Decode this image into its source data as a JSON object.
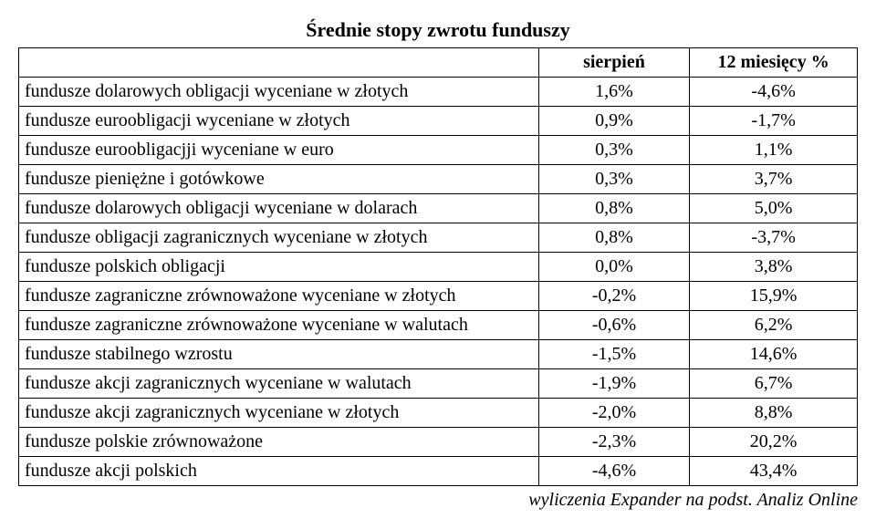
{
  "title": "Średnie stopy zwrotu funduszy",
  "columns": {
    "blank": "",
    "a": "sierpień",
    "b": "12 miesięcy %"
  },
  "rows": [
    {
      "label": "fundusze dolarowych obligacji wyceniane w złotych",
      "a": "1,6%",
      "b": "-4,6%"
    },
    {
      "label": "fundusze euroobligacji wyceniane w złotych",
      "a": "0,9%",
      "b": "-1,7%"
    },
    {
      "label": "fundusze euroobligacjji wyceniane w euro",
      "a": "0,3%",
      "b": "1,1%"
    },
    {
      "label": "fundusze pieniężne i gotówkowe",
      "a": "0,3%",
      "b": "3,7%"
    },
    {
      "label": "fundusze dolarowych obligacji wyceniane w dolarach",
      "a": "0,8%",
      "b": "5,0%"
    },
    {
      "label": "fundusze obligacji zagranicznych wyceniane w złotych",
      "a": "0,8%",
      "b": "-3,7%"
    },
    {
      "label": "fundusze polskich obligacji",
      "a": "0,0%",
      "b": "3,8%"
    },
    {
      "label": "fundusze zagraniczne zrównoważone wyceniane w złotych",
      "a": "-0,2%",
      "b": "15,9%"
    },
    {
      "label": "fundusze zagraniczne zrównoważone wyceniane w walutach",
      "a": "-0,6%",
      "b": "6,2%"
    },
    {
      "label": "fundusze stabilnego wzrostu",
      "a": "-1,5%",
      "b": "14,6%"
    },
    {
      "label": "fundusze akcji zagranicznych wyceniane w walutach",
      "a": "-1,9%",
      "b": "6,7%"
    },
    {
      "label": "fundusze akcji zagranicznych wyceniane w złotych",
      "a": "-2,0%",
      "b": "8,8%"
    },
    {
      "label": "fundusze polskie zrównoważone",
      "a": "-2,3%",
      "b": "20,2%"
    },
    {
      "label": "fundusze akcji polskich",
      "a": "-4,6%",
      "b": "43,4%"
    }
  ],
  "footnote": "wyliczenia Expander na podst. Analiz Online",
  "style": {
    "font_family": "Times New Roman",
    "title_fontsize_pt": 22,
    "body_fontsize_pt": 20,
    "text_color": "#000000",
    "background_color": "#ffffff",
    "border_color": "#000000",
    "col_widths_pct": [
      62,
      18,
      20
    ]
  }
}
